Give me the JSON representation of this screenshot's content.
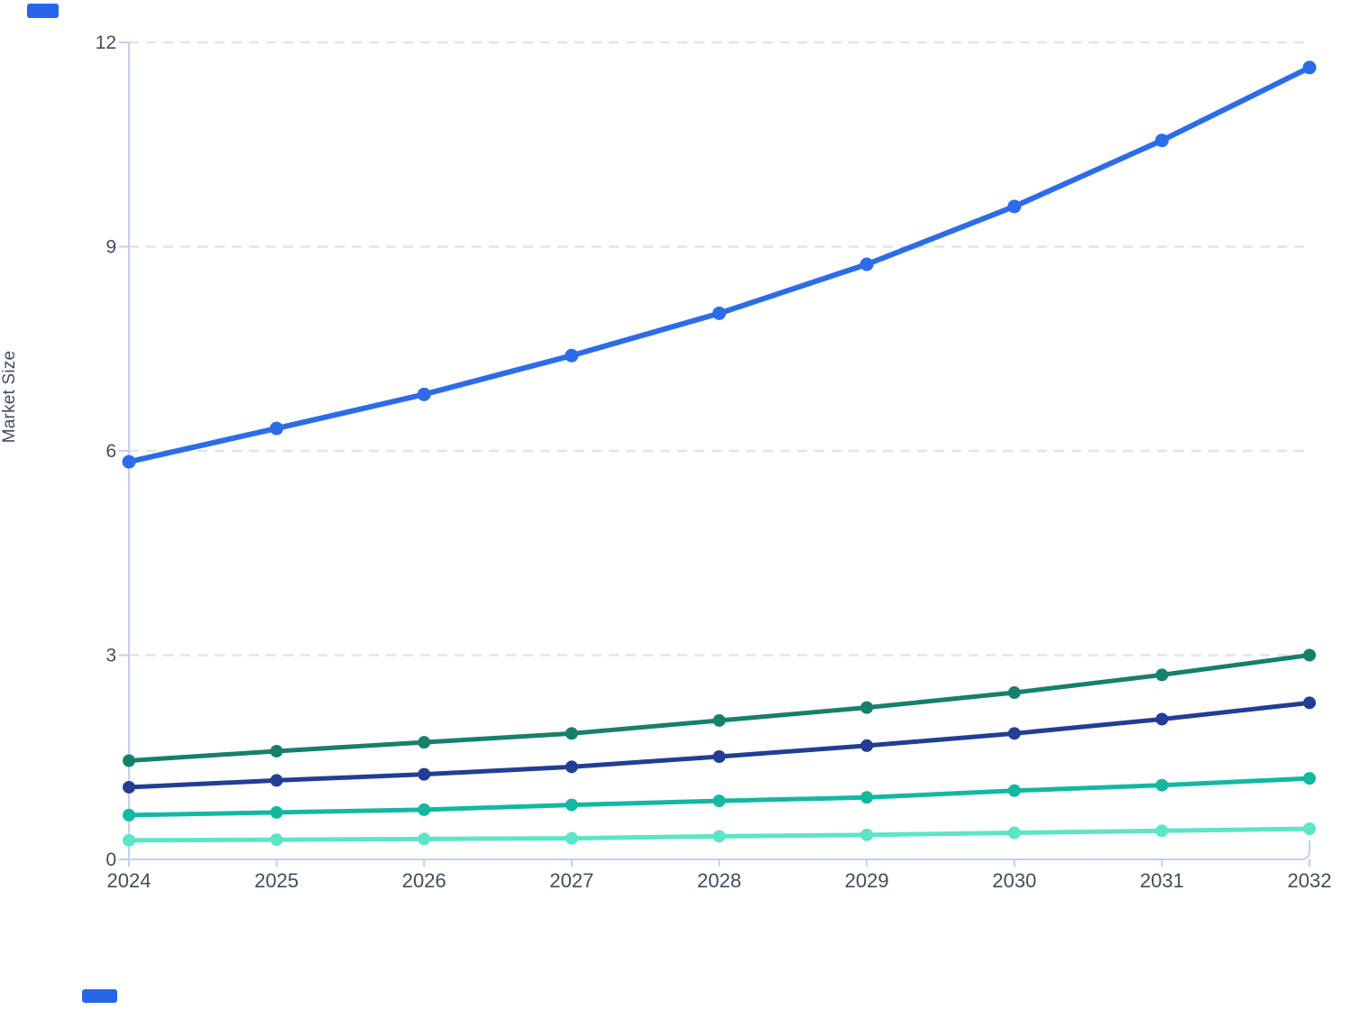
{
  "page": {
    "background": "#ffffff"
  },
  "fragments": {
    "top_left_blue_mark_color": "#2766e8",
    "bottom_left_blue_mark_color": "#2766e8"
  },
  "chart_data": {
    "type": "line",
    "title": "",
    "xlabel": "",
    "ylabel": "Market Size",
    "x": [
      "2024",
      "2025",
      "2026",
      "2027",
      "2028",
      "2029",
      "2030",
      "2031",
      "2032"
    ],
    "yticks": [
      0,
      3,
      6,
      9,
      12
    ],
    "ytick_labels": [
      "0",
      "3",
      "6",
      "9",
      "12"
    ],
    "ylim": [
      0,
      12
    ],
    "grid": "horizontal dashed lines at 3, 6, 9, 12",
    "legend_position": "none visible",
    "marker": "filled circle on every point",
    "series": [
      {
        "name": "blue",
        "color": "#2d6ce8",
        "line_width": 6,
        "marker_radius": 7.5,
        "values": [
          5.84,
          6.33,
          6.83,
          7.4,
          8.02,
          8.74,
          9.59,
          10.56,
          11.63
        ]
      },
      {
        "name": "dark-green",
        "color": "#17806b",
        "line_width": 5,
        "marker_radius": 7,
        "values": [
          1.45,
          1.59,
          1.72,
          1.85,
          2.04,
          2.23,
          2.45,
          2.71,
          3.0
        ]
      },
      {
        "name": "navy",
        "color": "#223e94",
        "line_width": 5,
        "marker_radius": 7,
        "values": [
          1.06,
          1.16,
          1.25,
          1.36,
          1.51,
          1.67,
          1.85,
          2.06,
          2.3
        ]
      },
      {
        "name": "teal",
        "color": "#13b8a2",
        "line_width": 5,
        "marker_radius": 7,
        "values": [
          0.65,
          0.69,
          0.73,
          0.8,
          0.86,
          0.91,
          1.01,
          1.09,
          1.19
        ]
      },
      {
        "name": "mint",
        "color": "#5ce5c6",
        "line_width": 5,
        "marker_radius": 7,
        "values": [
          0.28,
          0.29,
          0.3,
          0.31,
          0.34,
          0.36,
          0.39,
          0.42,
          0.45
        ]
      }
    ],
    "style": {
      "axis_color": "#c4cef0",
      "gridline_color": "#e3e4e9",
      "tick_text_color": "#424c61"
    }
  }
}
